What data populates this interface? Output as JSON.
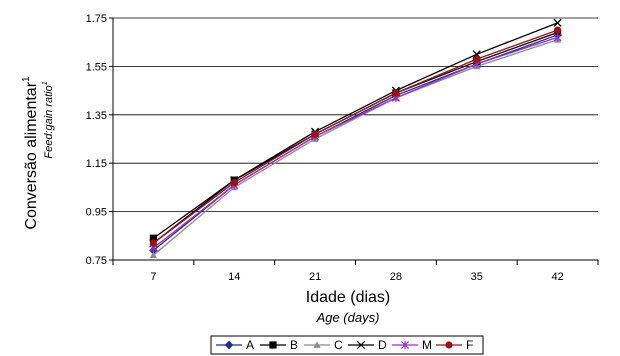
{
  "chart_data": {
    "type": "line",
    "x": [
      7,
      14,
      21,
      28,
      35,
      42
    ],
    "xlabel": "Idade (dias)",
    "xlabel_sub": "Age (days)",
    "ylabel": "Conversão alimentar",
    "ylabel_sup": "1",
    "ylabel_sub": "Feed:gain ratio",
    "ylabel_sub_sup": "1",
    "ylim": [
      0.75,
      1.75
    ],
    "yticks": [
      "0.75",
      "0.95",
      "1.15",
      "1.35",
      "1.55",
      "1.75"
    ],
    "xticks": [
      "7",
      "14",
      "21",
      "28",
      "35",
      "42"
    ],
    "grid": "horizontal",
    "legend_position": "bottom",
    "series": [
      {
        "name": "A",
        "color": "#1f2a9e",
        "marker": "diamond",
        "values": [
          0.79,
          1.06,
          1.26,
          1.43,
          1.56,
          1.68
        ]
      },
      {
        "name": "B",
        "color": "#000000",
        "marker": "square",
        "values": [
          0.84,
          1.08,
          1.27,
          1.44,
          1.57,
          1.69
        ]
      },
      {
        "name": "C",
        "color": "#8c8c8c",
        "marker": "triangle",
        "values": [
          0.77,
          1.05,
          1.25,
          1.42,
          1.55,
          1.66
        ]
      },
      {
        "name": "D",
        "color": "#000000",
        "marker": "x",
        "values": [
          0.82,
          1.08,
          1.28,
          1.45,
          1.6,
          1.73
        ]
      },
      {
        "name": "M",
        "color": "#9b30c8",
        "marker": "star",
        "values": [
          0.8,
          1.06,
          1.26,
          1.42,
          1.56,
          1.67
        ]
      },
      {
        "name": "F",
        "color": "#a01010",
        "marker": "circle",
        "values": [
          0.82,
          1.07,
          1.27,
          1.44,
          1.58,
          1.7
        ]
      }
    ]
  }
}
